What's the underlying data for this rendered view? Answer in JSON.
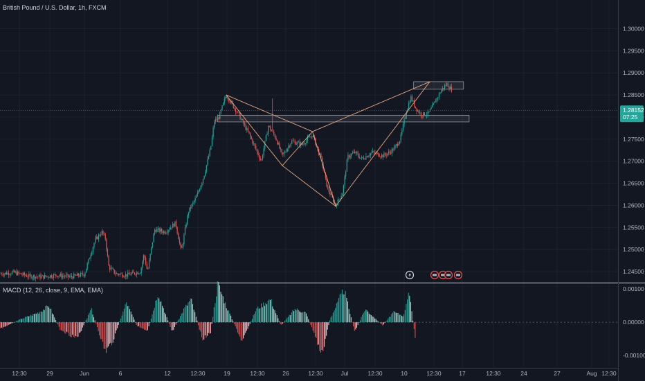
{
  "header": {
    "title": "British Pound / U.S. Dollar, 1h, FXCM",
    "macd_title": "MACD (12, 26, close, 9, EMA, EMA)"
  },
  "price_tag": {
    "price": "1.28152",
    "countdown": "07:25",
    "color": "#26a69a"
  },
  "colors": {
    "up": "#26a69a",
    "down": "#ef5350",
    "pattern": "#e8a87c",
    "zone_border": "#9598a1",
    "hist_pos": "#26a69a",
    "hist_neg": "#ef5350"
  },
  "icons": [
    "lightning-icon",
    "earnings-icon",
    "dividend-icon",
    "split-icon",
    "earnings-icon"
  ],
  "chart_data": [
    {
      "type": "candlestick",
      "title": "British Pound / U.S. Dollar, 1h, FXCM",
      "ylim": [
        1.2425,
        1.3065
      ],
      "y_ticks": [
        "1.30000",
        "1.29500",
        "1.29000",
        "1.28500",
        "1.28000",
        "1.27500",
        "1.27000",
        "1.26500",
        "1.26000",
        "1.25500",
        "1.25000",
        "1.24500"
      ],
      "x_ticks": [
        "12:30",
        "29",
        "Jun",
        "6",
        "12",
        "12:30",
        "19",
        "12:30",
        "26",
        "12:30",
        "Jul",
        "12:30",
        "10",
        "12:30",
        "17",
        "12:30",
        "24",
        "27",
        "Aug",
        "12:30"
      ],
      "path_close": [
        [
          0,
          1.2445
        ],
        [
          20,
          1.2448
        ],
        [
          40,
          1.244
        ],
        [
          60,
          1.2438
        ],
        [
          80,
          1.2442
        ],
        [
          100,
          1.2438
        ],
        [
          120,
          1.2444
        ],
        [
          135,
          1.252
        ],
        [
          145,
          1.254
        ],
        [
          150,
          1.2525
        ],
        [
          155,
          1.246
        ],
        [
          165,
          1.2445
        ],
        [
          180,
          1.2442
        ],
        [
          200,
          1.245
        ],
        [
          205,
          1.249
        ],
        [
          210,
          1.245
        ],
        [
          220,
          1.2545
        ],
        [
          235,
          1.254
        ],
        [
          250,
          1.256
        ],
        [
          258,
          1.2495
        ],
        [
          268,
          1.2585
        ],
        [
          280,
          1.262
        ],
        [
          290,
          1.2665
        ],
        [
          300,
          1.273
        ],
        [
          305,
          1.279
        ],
        [
          312,
          1.28
        ],
        [
          322,
          1.285
        ],
        [
          340,
          1.2805
        ],
        [
          355,
          1.276
        ],
        [
          372,
          1.27
        ],
        [
          382,
          1.278
        ],
        [
          392,
          1.2755
        ],
        [
          402,
          1.2712
        ],
        [
          415,
          1.2745
        ],
        [
          430,
          1.2738
        ],
        [
          445,
          1.276
        ],
        [
          458,
          1.27
        ],
        [
          466,
          1.264
        ],
        [
          478,
          1.26
        ],
        [
          488,
          1.263
        ],
        [
          495,
          1.271
        ],
        [
          505,
          1.272
        ],
        [
          515,
          1.2705
        ],
        [
          530,
          1.272
        ],
        [
          545,
          1.2712
        ],
        [
          555,
          1.272
        ],
        [
          562,
          1.273
        ],
        [
          570,
          1.275
        ],
        [
          578,
          1.281
        ],
        [
          585,
          1.2845
        ],
        [
          592,
          1.282
        ],
        [
          600,
          1.2805
        ],
        [
          610,
          1.2808
        ],
        [
          618,
          1.283
        ],
        [
          628,
          1.286
        ],
        [
          636,
          1.2875
        ],
        [
          644,
          1.286
        ]
      ],
      "x_domain": [
        0,
        880
      ],
      "harmonic_pattern": [
        [
          322,
          1.285
        ],
        [
          402,
          1.269
        ],
        [
          445,
          1.2767
        ],
        [
          478,
          1.2598
        ],
        [
          612,
          1.288
        ]
      ],
      "harmonic_diagonals": [
        [
          [
            322,
            1.285
          ],
          [
            445,
            1.2767
          ]
        ],
        [
          [
            445,
            1.2767
          ],
          [
            612,
            1.288
          ]
        ],
        [
          [
            402,
            1.269
          ],
          [
            478,
            1.2598
          ]
        ]
      ],
      "zones": [
        {
          "x": [
            589,
            660
          ],
          "y": [
            1.2863,
            1.288
          ]
        },
        {
          "x": [
            310,
            668
          ],
          "y": [
            1.2789,
            1.2804
          ]
        }
      ]
    },
    {
      "type": "histogram",
      "title": "MACD (12, 26, close, 9, EMA, EMA)",
      "ylim": [
        -0.00135,
        0.00115
      ],
      "y_ticks": [
        "0.00100",
        "0.00000",
        "-0.00100"
      ],
      "x_domain": [
        0,
        880
      ],
      "bar_range": [
        0,
        592
      ],
      "waves": [
        [
          0,
          -0.0002
        ],
        [
          30,
          0.0001
        ],
        [
          55,
          0.0003
        ],
        [
          70,
          0.0005
        ],
        [
          85,
          -0.0002
        ],
        [
          110,
          -0.0005
        ],
        [
          130,
          0.0004
        ],
        [
          150,
          -0.0009
        ],
        [
          160,
          -0.0006
        ],
        [
          180,
          0.0006
        ],
        [
          195,
          -0.0001
        ],
        [
          210,
          -0.0003
        ],
        [
          225,
          0.0009
        ],
        [
          245,
          -0.0003
        ],
        [
          262,
          0.0004
        ],
        [
          272,
          0.0007
        ],
        [
          288,
          -0.0005
        ],
        [
          300,
          -0.0003
        ],
        [
          310,
          0.0012
        ],
        [
          322,
          0.0005
        ],
        [
          345,
          -0.0006
        ],
        [
          365,
          0.0004
        ],
        [
          385,
          0.0007
        ],
        [
          400,
          -0.0001
        ],
        [
          420,
          0.0004
        ],
        [
          435,
          0.0003
        ],
        [
          445,
          -0.0002
        ],
        [
          458,
          -0.001
        ],
        [
          470,
          0.0001
        ],
        [
          490,
          0.001
        ],
        [
          505,
          -0.0003
        ],
        [
          520,
          0.0004
        ],
        [
          545,
          -0.0001
        ],
        [
          560,
          0.0003
        ],
        [
          575,
          0.0002
        ],
        [
          582,
          0.001
        ],
        [
          592,
          -0.0006
        ]
      ]
    }
  ]
}
